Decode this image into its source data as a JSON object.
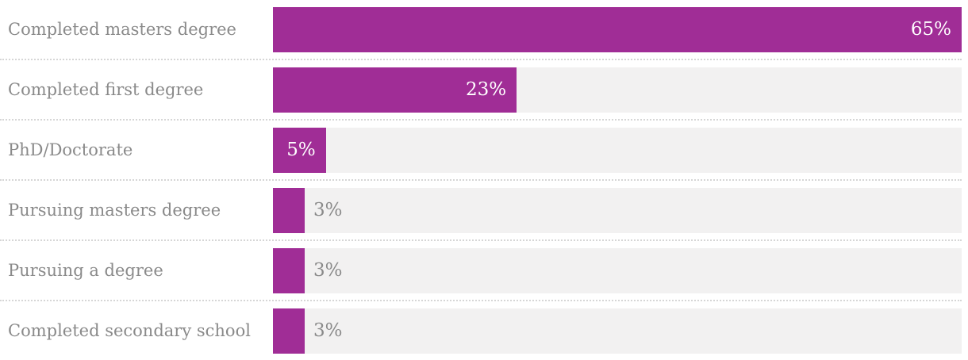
{
  "chart_data": {
    "type": "bar",
    "orientation": "horizontal",
    "title": "",
    "xlabel": "",
    "ylabel": "",
    "legend_position": "none",
    "grid": false,
    "scale_max": 65,
    "categories": [
      "Completed masters degree",
      "Completed first degree",
      "PhD/Doctorate",
      "Pursuing masters degree",
      "Pursuing a degree",
      "Completed secondary school"
    ],
    "values": [
      65,
      23,
      5,
      3,
      3,
      3
    ],
    "value_labels": [
      "65%",
      "23%",
      "5%",
      "3%",
      "3%",
      "3%"
    ],
    "value_label_inside": [
      true,
      true,
      true,
      false,
      false,
      false
    ]
  },
  "style": {
    "accent": "#a02d96",
    "track": "#f2f1f1",
    "label": "#8a8a8a",
    "value_inside": "#ffffff",
    "divider": "#d6d6d6",
    "background": "#ffffff"
  }
}
